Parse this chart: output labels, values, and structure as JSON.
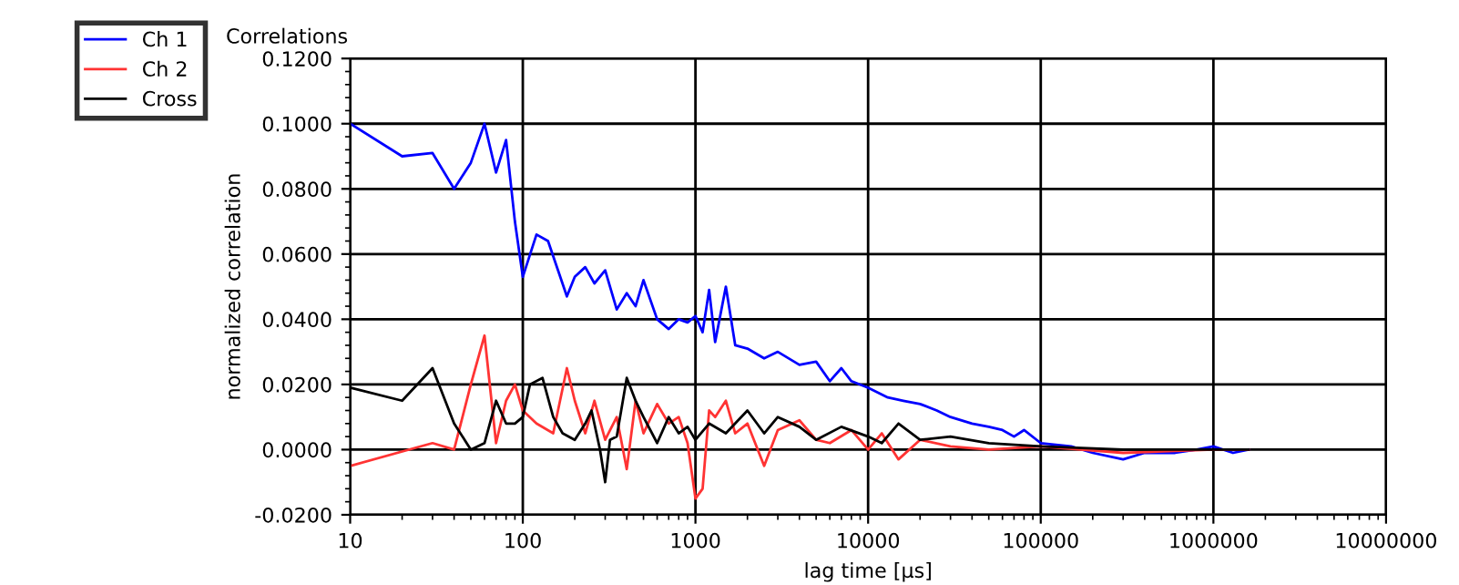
{
  "chart_data": {
    "type": "line",
    "title": "Correlations",
    "xlabel": "lag time [µs]",
    "ylabel": "normalized correlation",
    "log": "x",
    "grid": true,
    "legend": "top left",
    "marker": "none",
    "line_style": "solid",
    "xlim": [
      10,
      10000000
    ],
    "xticks": [
      10,
      100,
      1000,
      10000,
      100000,
      1000000,
      10000000
    ],
    "ylim": [
      -0.02,
      0.12
    ],
    "yticks": [
      {
        "value": -0.02,
        "label": "-0.0200"
      },
      {
        "value": 0,
        "label": "0.0000"
      },
      {
        "value": 0.02,
        "label": "0.0200"
      },
      {
        "value": 0.04,
        "label": "0.0400"
      },
      {
        "value": 0.06,
        "label": "0.0600"
      },
      {
        "value": 0.08,
        "label": "0.0800"
      },
      {
        "value": 0.1,
        "label": "0.1000"
      },
      {
        "value": 0.12,
        "label": "0.1200"
      }
    ],
    "series": [
      {
        "name": "Ch 1",
        "color": "#0000ff",
        "x": [
          10,
          20,
          30,
          40,
          50,
          60,
          70,
          80,
          90,
          100,
          120,
          140,
          160,
          180,
          200,
          230,
          260,
          300,
          350,
          400,
          450,
          500,
          600,
          700,
          800,
          900,
          1000,
          1100,
          1200,
          1300,
          1500,
          1700,
          2000,
          2500,
          3000,
          4000,
          5000,
          6000,
          7000,
          8000,
          10000,
          13000,
          16000,
          20000,
          25000,
          30000,
          40000,
          50000,
          60000,
          70000,
          80000,
          100000,
          150000,
          200000,
          300000,
          400000,
          600000,
          800000,
          1000000,
          1300000,
          1600000
        ],
        "values": [
          0.1,
          0.09,
          0.091,
          0.08,
          0.088,
          0.1,
          0.085,
          0.095,
          0.07,
          0.053,
          0.066,
          0.064,
          0.055,
          0.047,
          0.053,
          0.056,
          0.051,
          0.055,
          0.043,
          0.048,
          0.044,
          0.052,
          0.04,
          0.037,
          0.04,
          0.039,
          0.041,
          0.036,
          0.049,
          0.033,
          0.05,
          0.032,
          0.031,
          0.028,
          0.03,
          0.026,
          0.027,
          0.021,
          0.025,
          0.021,
          0.019,
          0.016,
          0.015,
          0.014,
          0.012,
          0.01,
          0.008,
          0.007,
          0.006,
          0.004,
          0.006,
          0.002,
          0.001,
          -0.001,
          -0.003,
          -0.001,
          -0.001,
          0.0,
          0.001,
          -0.001,
          0.0
        ]
      },
      {
        "name": "Ch 2",
        "color": "#ff3333",
        "x": [
          10,
          30,
          40,
          50,
          60,
          70,
          80,
          90,
          100,
          120,
          150,
          180,
          200,
          230,
          260,
          300,
          350,
          400,
          450,
          500,
          600,
          700,
          800,
          900,
          1000,
          1100,
          1200,
          1300,
          1500,
          1700,
          2000,
          2500,
          3000,
          4000,
          5000,
          6000,
          8000,
          10000,
          12000,
          15000,
          20000,
          30000,
          50000,
          100000,
          300000,
          1000000,
          1600000
        ],
        "values": [
          -0.005,
          0.002,
          0.0,
          0.02,
          0.035,
          0.002,
          0.015,
          0.02,
          0.012,
          0.008,
          0.005,
          0.025,
          0.015,
          0.005,
          0.015,
          0.003,
          0.01,
          -0.006,
          0.015,
          0.005,
          0.014,
          0.008,
          0.01,
          0.002,
          -0.015,
          -0.012,
          0.012,
          0.01,
          0.015,
          0.005,
          0.008,
          -0.005,
          0.006,
          0.009,
          0.003,
          0.002,
          0.006,
          0.0,
          0.005,
          -0.003,
          0.003,
          0.001,
          0.0,
          0.001,
          -0.001,
          0.0,
          0.0
        ]
      },
      {
        "name": "Cross",
        "color": "#000000",
        "x": [
          10,
          20,
          30,
          40,
          50,
          60,
          70,
          80,
          90,
          100,
          110,
          130,
          150,
          170,
          200,
          230,
          250,
          280,
          300,
          320,
          350,
          400,
          450,
          500,
          600,
          700,
          800,
          900,
          1000,
          1200,
          1500,
          2000,
          2500,
          3000,
          4000,
          5000,
          7000,
          10000,
          12000,
          15000,
          20000,
          30000,
          50000,
          100000,
          300000,
          1000000,
          1600000
        ],
        "values": [
          0.019,
          0.015,
          0.025,
          0.008,
          0.0,
          0.002,
          0.015,
          0.008,
          0.008,
          0.01,
          0.02,
          0.022,
          0.01,
          0.005,
          0.003,
          0.008,
          0.012,
          0.0,
          -0.01,
          0.003,
          0.004,
          0.022,
          0.015,
          0.01,
          0.002,
          0.01,
          0.005,
          0.007,
          0.003,
          0.008,
          0.005,
          0.012,
          0.005,
          0.01,
          0.007,
          0.003,
          0.007,
          0.004,
          0.002,
          0.008,
          0.003,
          0.004,
          0.002,
          0.001,
          0.0,
          0.0,
          0.0
        ]
      }
    ]
  }
}
